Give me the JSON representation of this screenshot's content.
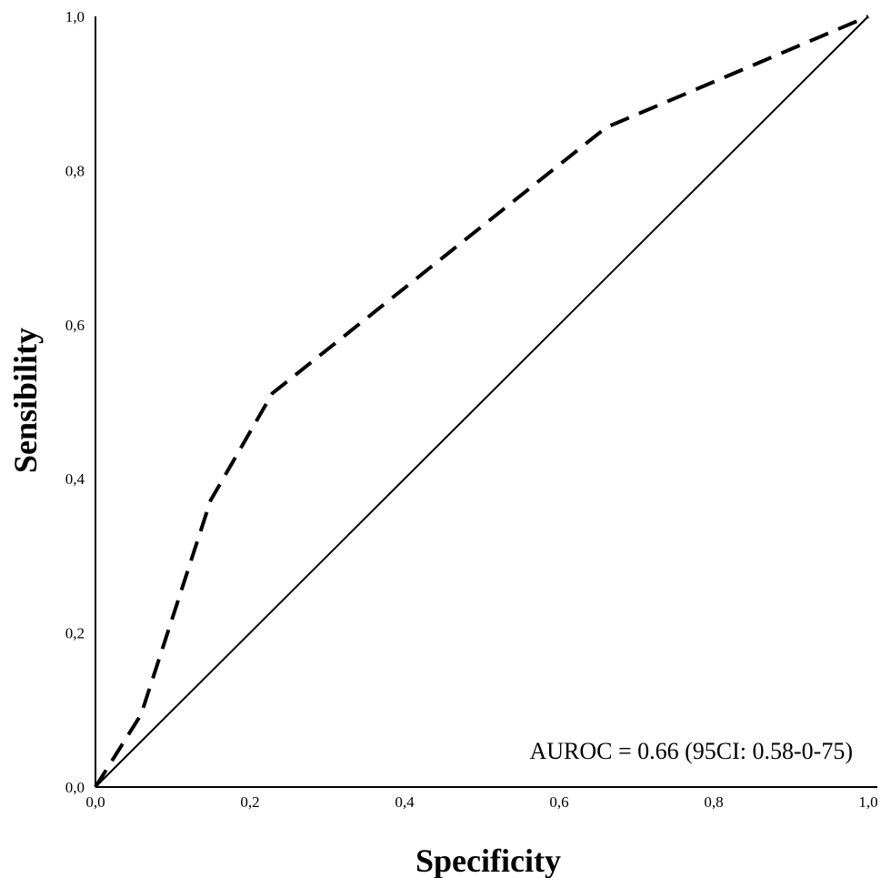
{
  "chart_data": {
    "type": "line",
    "xlabel": "Specificity",
    "ylabel": "Sensibility",
    "annotation": "AUROC = 0.66 (95CI: 0.58-0-75)",
    "xlim": [
      0,
      1
    ],
    "ylim": [
      0,
      1
    ],
    "xticks": [
      {
        "value": 0,
        "label": "0,0"
      },
      {
        "value": 0.2,
        "label": "0,2"
      },
      {
        "value": 0.4,
        "label": "0,4"
      },
      {
        "value": 0.6,
        "label": "0,6"
      },
      {
        "value": 0.8,
        "label": "0,8"
      },
      {
        "value": 1,
        "label": "1,0"
      }
    ],
    "yticks": [
      {
        "value": 0,
        "label": "0,0"
      },
      {
        "value": 0.2,
        "label": "0,2"
      },
      {
        "value": 0.4,
        "label": "0,4"
      },
      {
        "value": 0.6,
        "label": "0,6"
      },
      {
        "value": 0.8,
        "label": "0,8"
      },
      {
        "value": 1,
        "label": "1,0"
      }
    ],
    "grid": false,
    "series": [
      {
        "color": "#000000",
        "dashed": true,
        "x": [
          0,
          0.059,
          0.149,
          0.229,
          0.661,
          1
        ],
        "values": [
          0,
          0.094,
          0.372,
          0.511,
          0.856,
          1
        ]
      },
      {
        "color": "#000000",
        "dashed": false,
        "x": [
          0,
          1
        ],
        "values": [
          0,
          1
        ]
      }
    ]
  }
}
